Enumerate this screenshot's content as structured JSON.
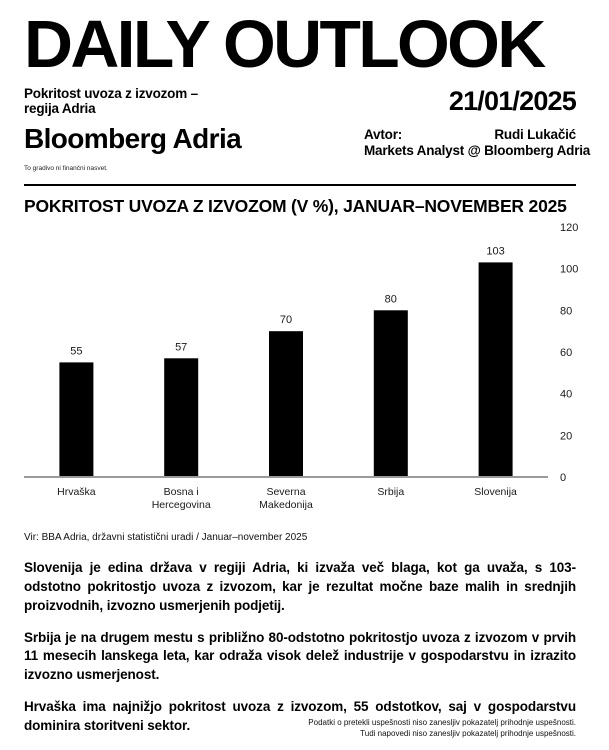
{
  "header": {
    "masthead": "DAILY OUTLOOK",
    "subtitle_line1": "Pokritost uvoza z izvozom –",
    "subtitle_line2": "regija Adria",
    "brand": "Bloomberg Adria",
    "brand_disclaimer": "To gradivo ni finančni nasvet.",
    "date": "21/01/2025",
    "author_label": "Avtor:",
    "author_name": "Rudi Lukačić",
    "author_title": "Markets Analyst @ Bloomberg Adria"
  },
  "chart_data": {
    "type": "bar",
    "title": "POKRITOST UVOZA Z IZVOZOM (V %), JANUAR–NOVEMBER 2025",
    "categories": [
      "Hrvaška",
      "Bosna i\nHercegovina",
      "Severna\nMakedonija",
      "Srbija",
      "Slovenija"
    ],
    "values": [
      55,
      57,
      70,
      80,
      103
    ],
    "xlabel": "",
    "ylabel": "",
    "ylim": [
      0,
      120
    ],
    "yticks": [
      0,
      20,
      40,
      60,
      80,
      100,
      120
    ],
    "ytick_side": "right",
    "grid": false,
    "legend_position": "none",
    "value_labels_shown": true,
    "bar_color": "#000000",
    "axis_color": "#9a9a9a",
    "label_color": "#1a1a1a"
  },
  "source": "Vir: BBA Adria, državni statistični uradi / Januar–november 2025",
  "paragraphs": [
    "Slovenija je edina država v regiji Adria, ki izvaža več blaga, kot ga uvaža, s 103-odstotno pokritostjo uvoza z izvozom, kar je rezultat močne baze malih in srednjih proizvodnih, izvozno usmerjenih podjetij.",
    "Srbija je na drugem mestu s približno 80-odstotno pokritostjo uvoza z izvozom v prvih 11 mesecih lanskega leta, kar odraža visok delež industrije v gospodarstvu in izrazito izvozno usmerjenost.",
    "Hrvaška ima najnižjo pokritost uvoza z izvozom, 55 odstotkov, saj v gospodarstvu dominira storitveni sektor."
  ],
  "footer": {
    "line1": "Podatki o pretekli uspešnosti niso zanesljiv pokazatelj prihodnje uspešnosti.",
    "line2": "Tudi napovedi niso zanesljiv pokazatelj prihodnje uspešnosti."
  }
}
